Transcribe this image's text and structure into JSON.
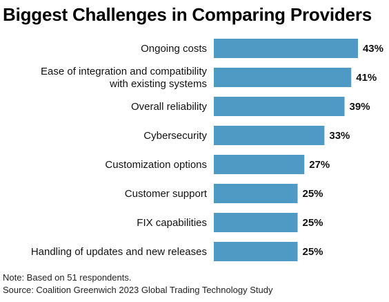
{
  "chart_data": {
    "type": "bar",
    "orientation": "horizontal",
    "title": "Biggest Challenges in Comparing Providers",
    "xlabel": "",
    "ylabel": "",
    "xlim": [
      0,
      50
    ],
    "grid": false,
    "legend": "none",
    "bar_color": "#4f9ac4",
    "categories": [
      [
        "Ongoing costs"
      ],
      [
        "Ease of integration and compatibility",
        "with existing systems"
      ],
      [
        "Overall reliability"
      ],
      [
        "Cybersecurity"
      ],
      [
        "Customization options"
      ],
      [
        "Customer support"
      ],
      [
        "FIX capabilities"
      ],
      [
        "Handling of updates and new releases"
      ]
    ],
    "values": [
      43,
      41,
      39,
      33,
      27,
      25,
      25,
      25
    ],
    "value_suffix": "%"
  },
  "notes": {
    "note": "Note: Based on 51 respondents.",
    "source": "Source: Coalition Greenwich 2023 Global Trading Technology Study"
  }
}
